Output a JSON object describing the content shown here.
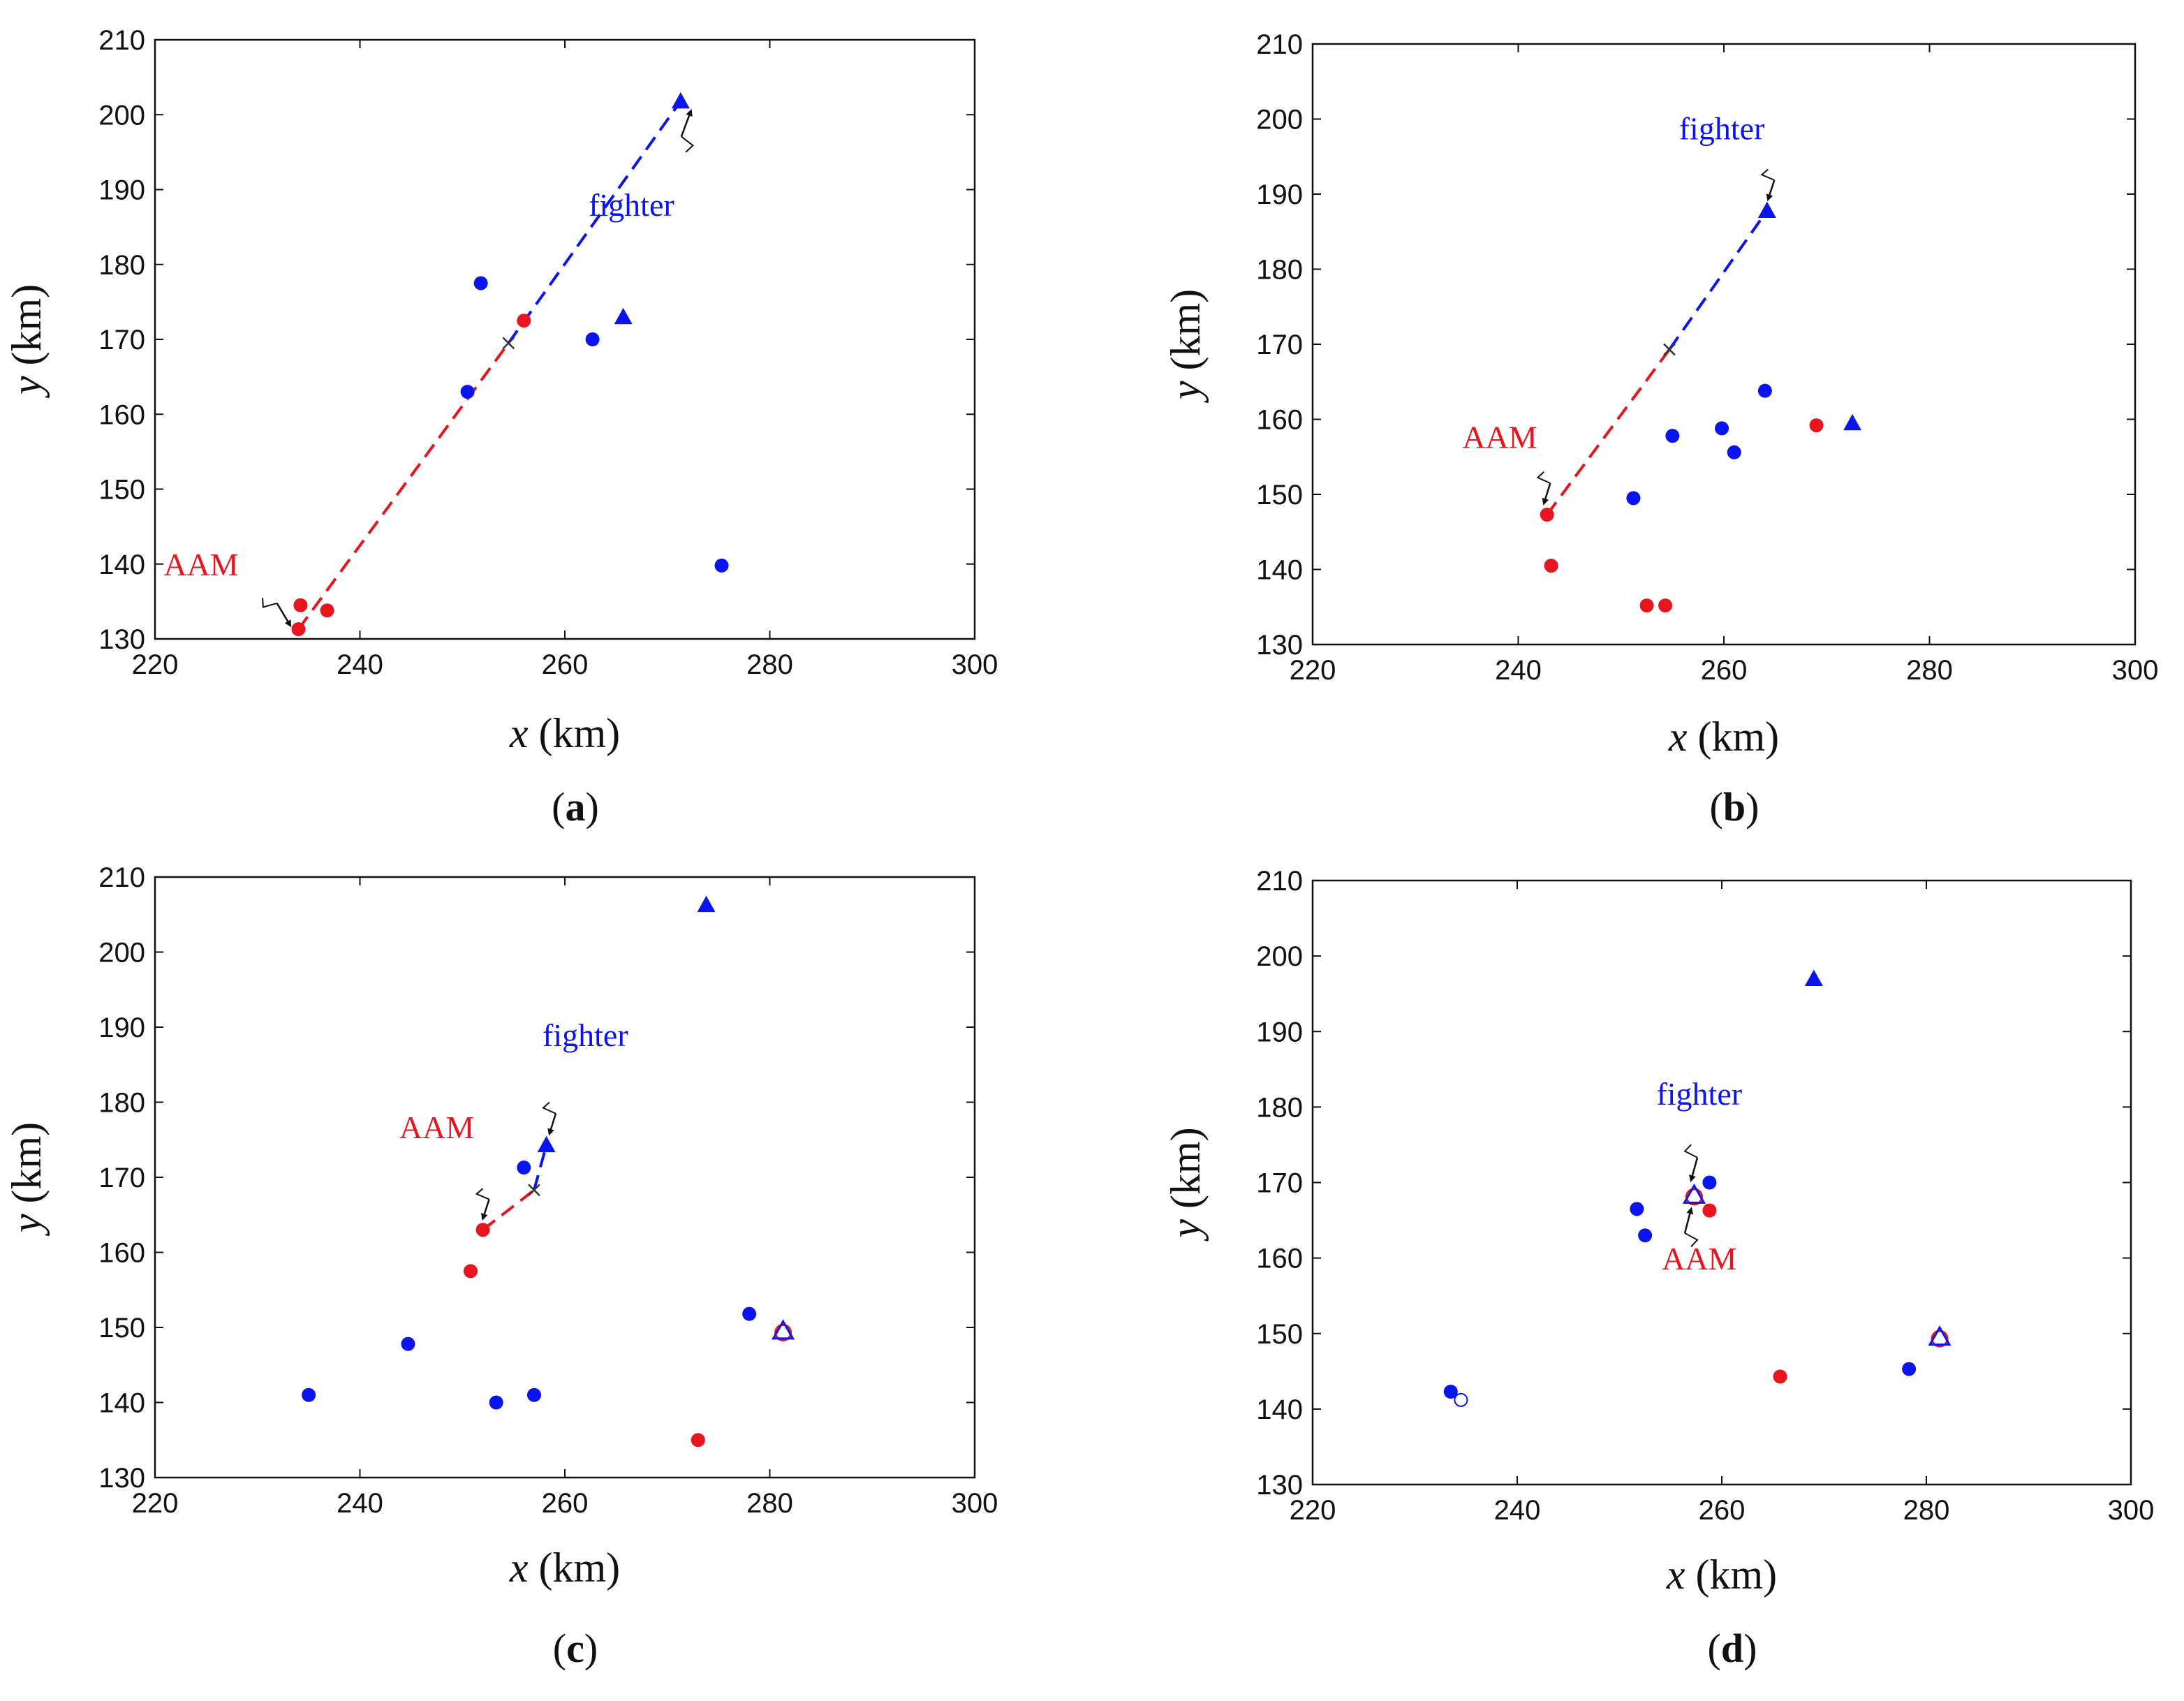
{
  "colors": {
    "blue": "#0a14f0",
    "red": "#e8141e",
    "black": "#111111"
  },
  "chart_data": [
    {
      "id": "a",
      "type": "scatter",
      "panel_label": "a",
      "xlabel_var": "x",
      "xlabel_unit": " (km)",
      "ylabel_var": "y",
      "ylabel_unit": " (km)",
      "xlim": [
        220,
        300
      ],
      "ylim": [
        130,
        210
      ],
      "xticks": [
        220,
        240,
        260,
        280,
        300
      ],
      "yticks": [
        130,
        140,
        150,
        160,
        170,
        180,
        190,
        200,
        210
      ],
      "series": [
        {
          "name": "blue-dots",
          "marker": "circle",
          "color": "blue",
          "points": [
            [
              251.8,
              177.5
            ],
            [
              250.5,
              163.0
            ],
            [
              262.7,
              170.0
            ],
            [
              275.3,
              139.8
            ]
          ]
        },
        {
          "name": "blue-triangles",
          "marker": "triangle",
          "color": "blue",
          "points": [
            [
              271.3,
              201.8
            ],
            [
              265.7,
              173.0
            ]
          ]
        },
        {
          "name": "red-dots",
          "marker": "circle",
          "color": "red",
          "points": [
            [
              256.0,
              172.5
            ],
            [
              234.2,
              134.5
            ],
            [
              236.8,
              133.8
            ],
            [
              234.0,
              131.3
            ]
          ]
        }
      ],
      "paths": [
        {
          "name": "missile-path",
          "color": "red",
          "from": [
            234.0,
            131.3
          ],
          "to": [
            254.5,
            169.5
          ]
        },
        {
          "name": "fighter-path",
          "color": "blue",
          "from": [
            254.5,
            169.5
          ],
          "to": [
            271.3,
            201.8
          ]
        }
      ],
      "cross": [
        254.5,
        169.5
      ],
      "annotations": [
        {
          "text": "AAM",
          "color": "red",
          "text_at": [
            224.5,
            138.5
          ],
          "arrow_from": [
            230.5,
            135.5
          ],
          "arrow_to": [
            233.2,
            131.8
          ]
        },
        {
          "text": "fighter",
          "color": "blue",
          "text_at": [
            266.5,
            186.5
          ],
          "arrow_from": [
            271.8,
            195.0
          ],
          "arrow_to": [
            272.3,
            200.5
          ]
        }
      ]
    },
    {
      "id": "b",
      "type": "scatter",
      "panel_label": "b",
      "xlabel_var": "x",
      "xlabel_unit": " (km)",
      "ylabel_var": "y",
      "ylabel_unit": " (km)",
      "xlim": [
        220,
        300
      ],
      "ylim": [
        130,
        210
      ],
      "xticks": [
        220,
        240,
        260,
        280,
        300
      ],
      "yticks": [
        130,
        140,
        150,
        160,
        170,
        180,
        190,
        200,
        210
      ],
      "series": [
        {
          "name": "blue-dots",
          "marker": "circle",
          "color": "blue",
          "points": [
            [
              255.0,
              157.8
            ],
            [
              259.8,
              158.8
            ],
            [
              261.0,
              155.6
            ],
            [
              264.0,
              163.8
            ],
            [
              251.2,
              149.5
            ]
          ]
        },
        {
          "name": "blue-triangles",
          "marker": "triangle",
          "color": "blue",
          "points": [
            [
              264.2,
              187.8
            ],
            [
              272.5,
              159.5
            ]
          ]
        },
        {
          "name": "red-dots",
          "marker": "circle",
          "color": "red",
          "points": [
            [
              242.8,
              147.3
            ],
            [
              243.2,
              140.5
            ],
            [
              252.5,
              135.2
            ],
            [
              254.3,
              135.2
            ],
            [
              269.0,
              159.2
            ]
          ]
        }
      ],
      "paths": [
        {
          "name": "missile-path",
          "color": "red",
          "from": [
            242.8,
            147.3
          ],
          "to": [
            254.7,
            169.3
          ]
        },
        {
          "name": "fighter-path",
          "color": "blue",
          "from": [
            254.7,
            169.3
          ],
          "to": [
            264.2,
            187.8
          ]
        }
      ],
      "cross": [
        254.7,
        169.3
      ],
      "annotations": [
        {
          "text": "AAM",
          "color": "red",
          "text_at": [
            238.2,
            156.2
          ],
          "arrow_from": [
            242.5,
            153.0
          ],
          "arrow_to": [
            242.5,
            148.8
          ]
        },
        {
          "text": "fighter",
          "color": "blue",
          "text_at": [
            259.8,
            197.3
          ],
          "arrow_from": [
            264.3,
            193.3
          ],
          "arrow_to": [
            264.3,
            189.3
          ]
        }
      ]
    },
    {
      "id": "c",
      "type": "scatter",
      "panel_label": "c",
      "xlabel_var": "x",
      "xlabel_unit": " (km)",
      "ylabel_var": "y",
      "ylabel_unit": " (km)",
      "xlim": [
        220,
        300
      ],
      "ylim": [
        130,
        210
      ],
      "xticks": [
        220,
        240,
        260,
        280,
        300
      ],
      "yticks": [
        130,
        140,
        150,
        160,
        170,
        180,
        190,
        200,
        210
      ],
      "series": [
        {
          "name": "blue-dots",
          "marker": "circle",
          "color": "blue",
          "points": [
            [
              256.0,
              171.3
            ],
            [
              244.7,
              147.8
            ],
            [
              235.0,
              141.0
            ],
            [
              253.3,
              140.0
            ],
            [
              257.0,
              141.0
            ],
            [
              278.0,
              151.8
            ]
          ]
        },
        {
          "name": "blue-triangles",
          "marker": "triangle",
          "color": "blue",
          "points": [
            [
              273.8,
              206.3
            ],
            [
              258.2,
              174.3
            ]
          ]
        },
        {
          "name": "red-dots",
          "marker": "circle",
          "color": "red",
          "points": [
            [
              252.0,
              163.0
            ],
            [
              250.8,
              157.5
            ],
            [
              273.0,
              135.0
            ]
          ]
        },
        {
          "name": "combined-markers",
          "marker": "combined",
          "color": "red",
          "points": [
            [
              281.3,
              149.5
            ]
          ]
        }
      ],
      "paths": [
        {
          "name": "missile-path",
          "color": "red",
          "from": [
            252.0,
            163.0
          ],
          "to": [
            257.0,
            168.3
          ]
        },
        {
          "name": "fighter-path",
          "color": "blue",
          "from": [
            257.0,
            168.3
          ],
          "to": [
            258.2,
            174.3
          ]
        }
      ],
      "cross": [
        257.0,
        168.3
      ],
      "annotations": [
        {
          "text": "AAM",
          "color": "red",
          "text_at": [
            247.5,
            175.2
          ],
          "arrow_from": [
            252.0,
            168.5
          ],
          "arrow_to": [
            252.0,
            164.5
          ]
        },
        {
          "text": "fighter",
          "color": "blue",
          "text_at": [
            262.0,
            187.5
          ],
          "arrow_from": [
            258.5,
            180.0
          ],
          "arrow_to": [
            258.5,
            175.8
          ]
        }
      ]
    },
    {
      "id": "d",
      "type": "scatter",
      "panel_label": "d",
      "xlabel_var": "x",
      "xlabel_unit": " (km)",
      "ylabel_var": "y",
      "ylabel_unit": " (km)",
      "xlim": [
        220,
        300
      ],
      "ylim": [
        130,
        210
      ],
      "xticks": [
        220,
        240,
        260,
        280,
        300
      ],
      "yticks": [
        130,
        140,
        150,
        160,
        170,
        180,
        190,
        200,
        210
      ],
      "series": [
        {
          "name": "blue-dots",
          "marker": "circle",
          "color": "blue",
          "points": [
            [
              251.7,
              166.5
            ],
            [
              252.5,
              163.0
            ],
            [
              258.8,
              170.0
            ],
            [
              278.3,
              145.3
            ],
            [
              233.5,
              142.3
            ]
          ]
        },
        {
          "name": "blue-hollow-dots",
          "marker": "hollow-circle",
          "color": "blue",
          "points": [
            [
              234.5,
              141.2
            ]
          ]
        },
        {
          "name": "blue-triangles",
          "marker": "triangle",
          "color": "blue",
          "points": [
            [
              269.0,
              197.0
            ]
          ]
        },
        {
          "name": "red-dots",
          "marker": "circle",
          "color": "red",
          "points": [
            [
              258.8,
              166.3
            ],
            [
              265.7,
              144.3
            ]
          ]
        },
        {
          "name": "combined-markers",
          "marker": "combined",
          "color": "red",
          "points": [
            [
              257.3,
              168.3
            ],
            [
              281.3,
              149.5
            ]
          ]
        }
      ],
      "paths": [],
      "annotations": [
        {
          "text": "fighter",
          "color": "blue",
          "text_at": [
            257.8,
            180.3
          ],
          "arrow_from": [
            257.0,
            175.0
          ],
          "arrow_to": [
            257.0,
            170.3
          ]
        },
        {
          "text": "AAM",
          "color": "red",
          "text_at": [
            257.8,
            158.5
          ],
          "arrow_from": [
            257.0,
            161.5
          ],
          "arrow_to": [
            257.0,
            166.5
          ]
        }
      ]
    }
  ]
}
